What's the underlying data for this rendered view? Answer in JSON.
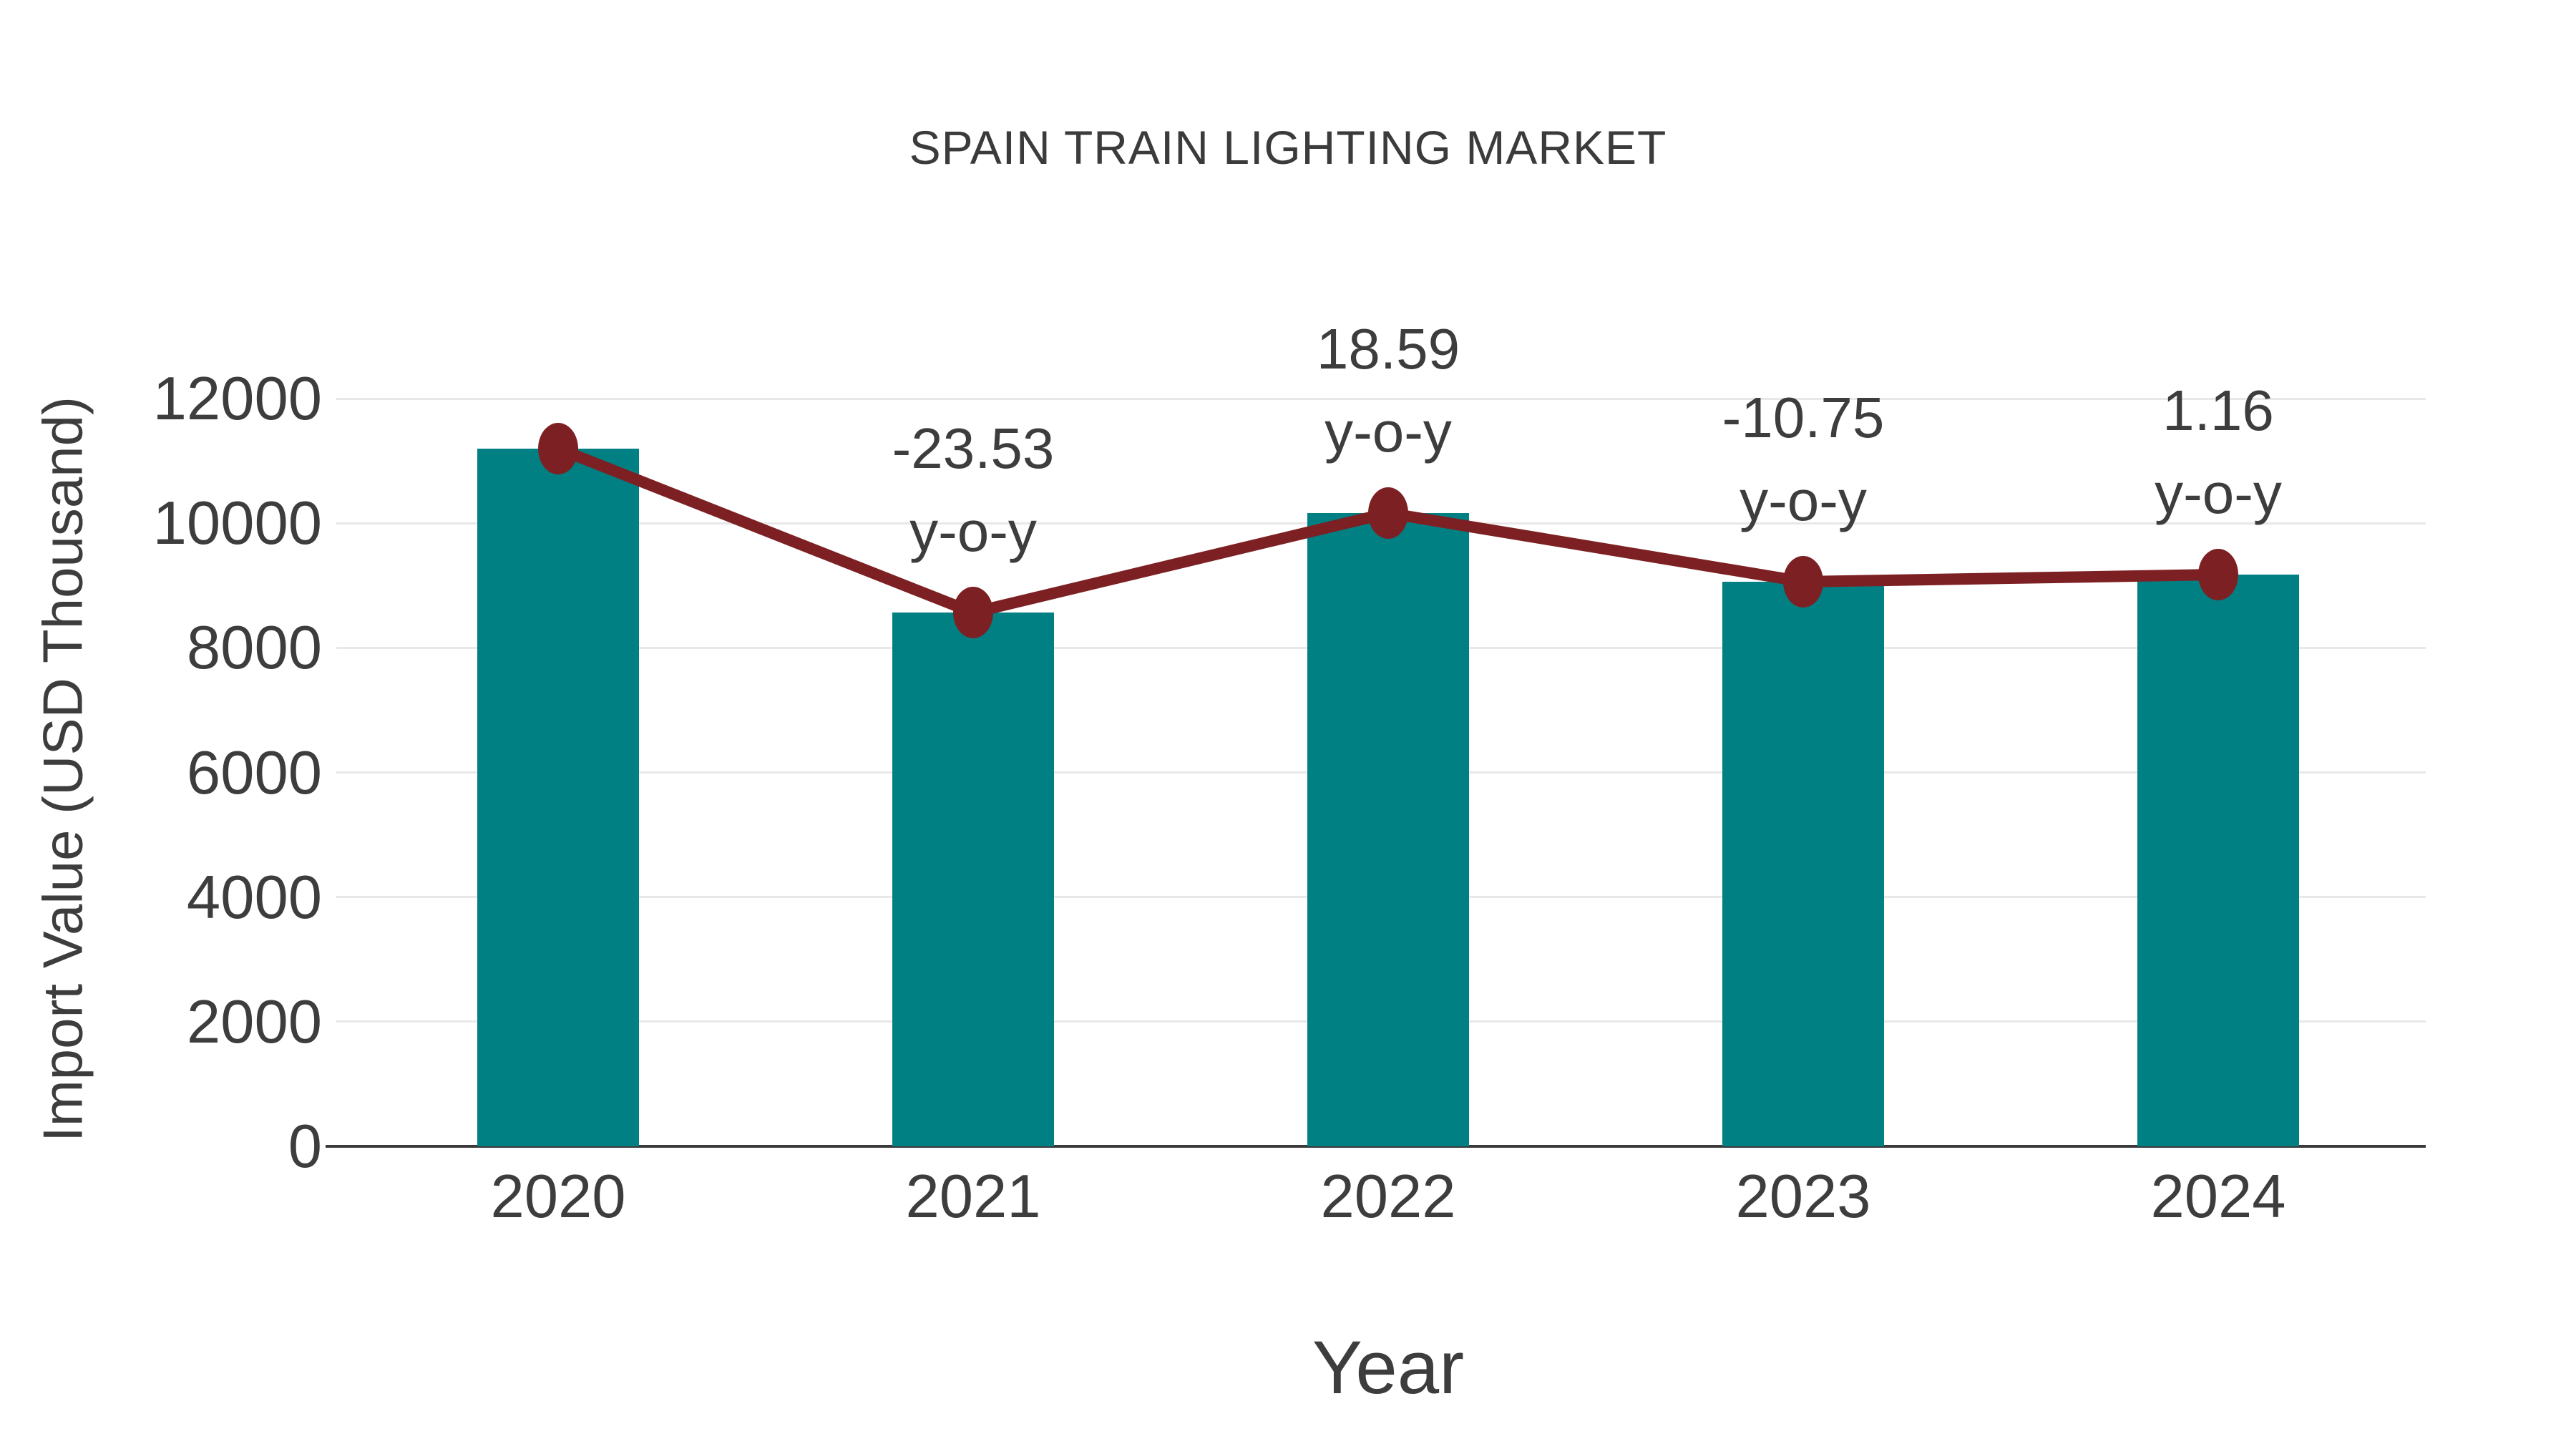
{
  "chart_data": {
    "type": "combo-bar-line",
    "title": "SPAIN TRAIN LIGHTING MARKET",
    "xlabel": "Year",
    "ylabel": "Import Value (USD Thousand)",
    "categories": [
      "2020",
      "2021",
      "2022",
      "2023",
      "2024"
    ],
    "series": [
      {
        "name": "Import Value",
        "type": "bar",
        "values": [
          11200,
          8565,
          10157,
          9065,
          9170
        ],
        "color": "#018084"
      },
      {
        "name": "Trend",
        "type": "line",
        "values": [
          11200,
          8565,
          10157,
          9065,
          9170
        ],
        "color": "#7d2023"
      }
    ],
    "annotations": [
      {
        "category": "2021",
        "line1": "-23.53",
        "line2": "y-o-y"
      },
      {
        "category": "2022",
        "line1": "18.59",
        "line2": "y-o-y"
      },
      {
        "category": "2023",
        "line1": "-10.75",
        "line2": "y-o-y"
      },
      {
        "category": "2024",
        "line1": "1.16",
        "line2": "y-o-y"
      }
    ],
    "ylim": [
      0,
      12000
    ],
    "yticks": [
      0,
      2000,
      4000,
      6000,
      8000,
      10000,
      12000
    ],
    "grid": "horizontal",
    "legend": "none",
    "colors": {
      "bar": "#018084",
      "line": "#7d2023",
      "marker": "#7d2023",
      "text": "#3d3d3d",
      "grid": "#e8e8e8",
      "axis": "#3a3a3a"
    }
  }
}
